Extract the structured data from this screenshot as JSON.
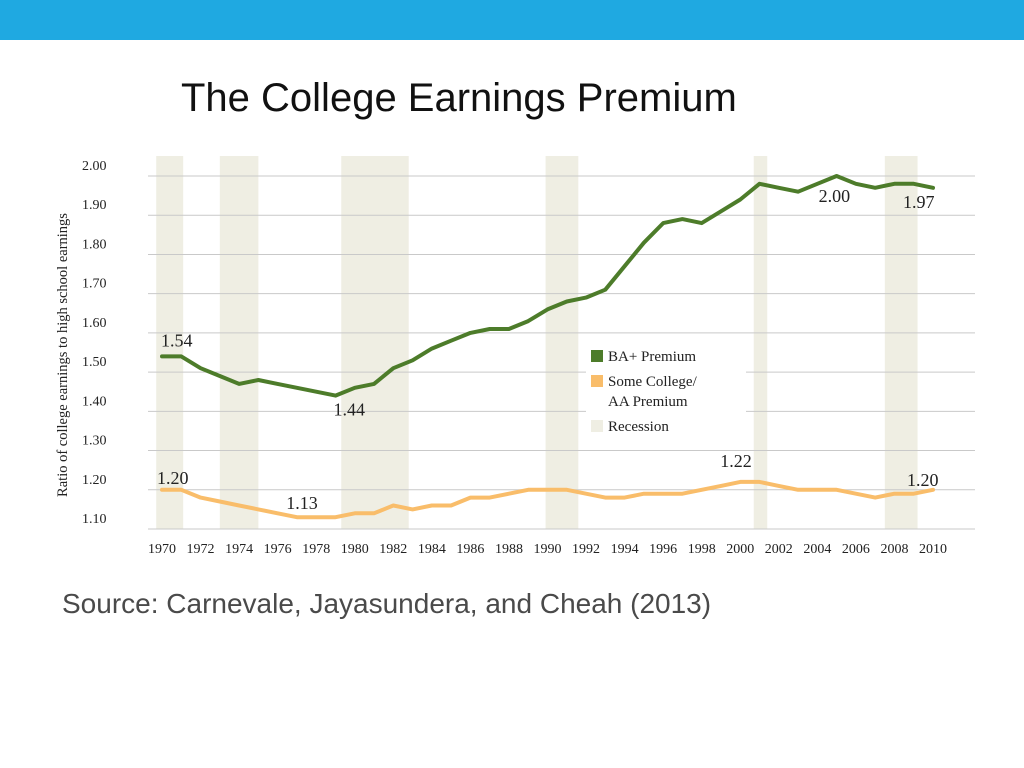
{
  "slide": {
    "title": "The College Earnings Premium",
    "source": "Source: Carnevale, Jayasundera, and Cheah (2013)",
    "bar_color": "#1fa9e1"
  },
  "chart_data": {
    "type": "line",
    "ylabel": "Ratio of college earnings to high school earnings",
    "xlabel": "",
    "ylim": [
      1.1,
      2.0
    ],
    "xlim": [
      1970,
      2010
    ],
    "y_ticks": [
      "1.10",
      "1.20",
      "1.30",
      "1.40",
      "1.50",
      "1.60",
      "1.70",
      "1.80",
      "1.90",
      "2.00"
    ],
    "x_ticks": [
      "1970",
      "1972",
      "1974",
      "1976",
      "1978",
      "1980",
      "1982",
      "1984",
      "1986",
      "1988",
      "1990",
      "1992",
      "1994",
      "1996",
      "1998",
      "2000",
      "2002",
      "2004",
      "2006",
      "2008",
      "2010"
    ],
    "grid": true,
    "legend_position": "center-right",
    "recessions": [
      [
        1969.7,
        1971.1
      ],
      [
        1973.0,
        1975.0
      ],
      [
        1979.3,
        1982.8
      ],
      [
        1989.9,
        1991.6
      ],
      [
        2000.7,
        2001.4
      ],
      [
        2007.5,
        2009.2
      ]
    ],
    "series": [
      {
        "name": "BA+ Premium",
        "color": "#4d7c2a",
        "x": [
          1970,
          1971,
          1972,
          1973,
          1974,
          1975,
          1976,
          1977,
          1978,
          1979,
          1980,
          1981,
          1982,
          1983,
          1984,
          1985,
          1986,
          1987,
          1988,
          1989,
          1990,
          1991,
          1992,
          1993,
          1994,
          1995,
          1996,
          1997,
          1998,
          1999,
          2000,
          2001,
          2002,
          2003,
          2004,
          2005,
          2006,
          2007,
          2008,
          2009,
          2010
        ],
        "values": [
          1.54,
          1.54,
          1.51,
          1.49,
          1.47,
          1.48,
          1.47,
          1.46,
          1.45,
          1.44,
          1.46,
          1.47,
          1.51,
          1.53,
          1.56,
          1.58,
          1.6,
          1.61,
          1.61,
          1.63,
          1.66,
          1.68,
          1.69,
          1.71,
          1.77,
          1.83,
          1.88,
          1.89,
          1.88,
          1.91,
          1.94,
          1.98,
          1.97,
          1.96,
          1.98,
          2.0,
          1.98,
          1.97,
          1.98,
          1.98,
          1.97
        ]
      },
      {
        "name": "Some College/ AA Premium",
        "legend_lines": [
          "Some College/",
          "AA Premium"
        ],
        "color": "#f9bd6a",
        "x": [
          1970,
          1971,
          1972,
          1973,
          1974,
          1975,
          1976,
          1977,
          1978,
          1979,
          1980,
          1981,
          1982,
          1983,
          1984,
          1985,
          1986,
          1987,
          1988,
          1989,
          1990,
          1991,
          1992,
          1993,
          1994,
          1995,
          1996,
          1997,
          1998,
          1999,
          2000,
          2001,
          2002,
          2003,
          2004,
          2005,
          2006,
          2007,
          2008,
          2009,
          2010
        ],
        "values": [
          1.2,
          1.2,
          1.18,
          1.17,
          1.16,
          1.15,
          1.14,
          1.13,
          1.13,
          1.13,
          1.14,
          1.14,
          1.16,
          1.15,
          1.16,
          1.16,
          1.18,
          1.18,
          1.19,
          1.2,
          1.2,
          1.2,
          1.19,
          1.18,
          1.18,
          1.19,
          1.19,
          1.19,
          1.2,
          1.21,
          1.22,
          1.22,
          1.21,
          1.2,
          1.2,
          1.2,
          1.19,
          1.18,
          1.19,
          1.19,
          1.2
        ]
      }
    ],
    "legend": [
      {
        "label": "BA+ Premium",
        "color": "#4d7c2a"
      },
      {
        "label": "Some College/",
        "label2": "AA Premium",
        "color": "#f9bd6a"
      },
      {
        "label": "Recession",
        "color": "#efeee3"
      }
    ],
    "annotations": [
      {
        "text": "1.54",
        "x": 1970,
        "y": 1.54,
        "series": 0
      },
      {
        "text": "1.44",
        "x": 1979,
        "y": 1.44,
        "series": 0
      },
      {
        "text": "2.00",
        "x": 2005,
        "y": 2.0,
        "series": 0
      },
      {
        "text": "1.97",
        "x": 2010,
        "y": 1.97,
        "series": 0
      },
      {
        "text": "1.20",
        "x": 1970,
        "y": 1.2,
        "series": 1
      },
      {
        "text": "1.13",
        "x": 1978,
        "y": 1.13,
        "series": 1
      },
      {
        "text": "1.22",
        "x": 2000,
        "y": 1.22,
        "series": 1
      },
      {
        "text": "1.20",
        "x": 2010,
        "y": 1.2,
        "series": 1
      }
    ]
  }
}
